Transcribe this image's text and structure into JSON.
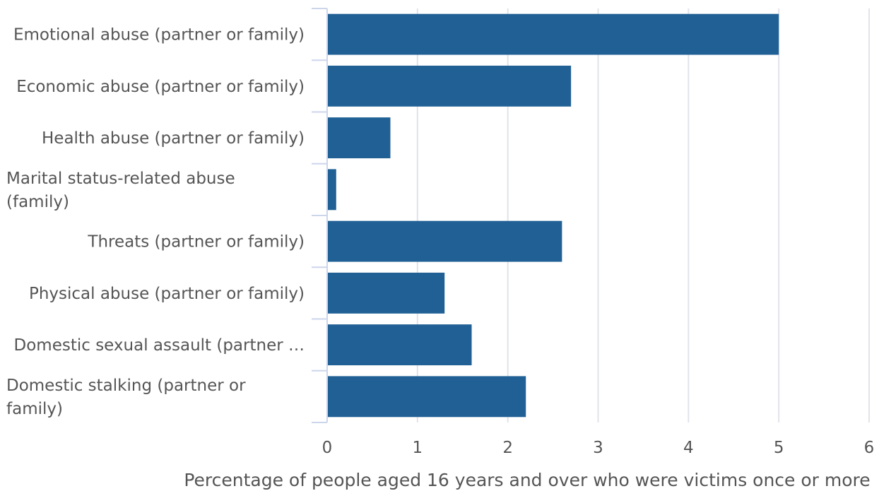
{
  "chart_data": {
    "type": "bar",
    "orientation": "horizontal",
    "categories": [
      "Emotional abuse (partner or family)",
      "Economic abuse (partner or family)",
      "Health abuse (partner or family)",
      "Marital status-related abuse (family)",
      "Threats (partner or family)",
      "Physical abuse (partner or family)",
      "Domestic sexual assault (partner …",
      "Domestic stalking (partner or family)"
    ],
    "category_lines": [
      [
        "Emotional abuse (partner or family)"
      ],
      [
        "Economic abuse (partner or family)"
      ],
      [
        "Health abuse (partner or family)"
      ],
      [
        "Marital status-related abuse",
        "(family)"
      ],
      [
        "Threats (partner or family)"
      ],
      [
        "Physical abuse (partner or family)"
      ],
      [
        "Domestic sexual assault (partner …"
      ],
      [
        "Domestic stalking (partner or",
        "family)"
      ]
    ],
    "values": [
      5.0,
      2.7,
      0.7,
      0.1,
      2.6,
      1.3,
      1.6,
      2.2
    ],
    "xlabel": "Percentage of people aged 16 years and over who were victims once or more",
    "ylabel": "",
    "xlim": [
      0,
      6
    ],
    "ticks": [
      "0",
      "1",
      "2",
      "3",
      "4",
      "5",
      "6"
    ],
    "grid": true,
    "bar_color": "#206095"
  }
}
